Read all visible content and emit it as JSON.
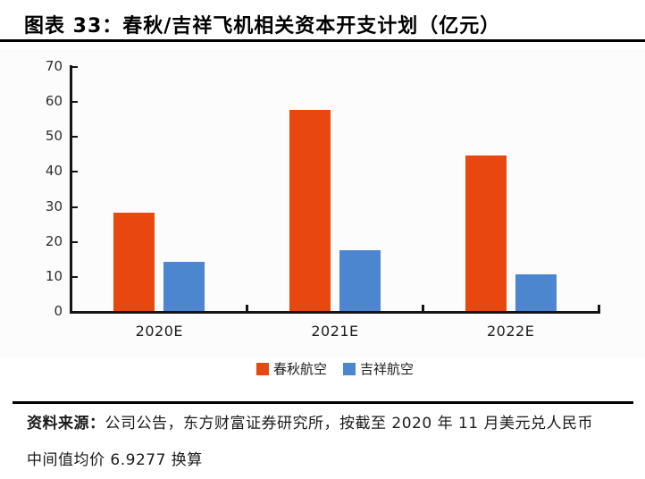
{
  "header": {
    "title": "图表 33：春秋/吉祥飞机相关资本开支计划（亿元）"
  },
  "chart_data": {
    "type": "bar",
    "title": "春秋/吉祥飞机相关资本开支计划（亿元）",
    "categories": [
      "2020E",
      "2021E",
      "2022E"
    ],
    "series": [
      {
        "name": "春秋航空",
        "color": "#e8480f",
        "values": [
          28,
          57.5,
          44.5
        ]
      },
      {
        "name": "吉祥航空",
        "color": "#4c86ce",
        "values": [
          14,
          17.5,
          10.5
        ]
      }
    ],
    "xlabel": "",
    "ylabel": "",
    "ylim": [
      0,
      70
    ],
    "yticks": [
      0,
      10,
      20,
      30,
      40,
      50,
      60,
      70
    ],
    "grid": false,
    "legend_position": "bottom"
  },
  "footer": {
    "source_label": "资料来源：",
    "source_line1_rest": "公司公告，东方财富证券研究所，按截至 2020 年 11 月美元兑人民币",
    "source_line2": "中间值均价 6.9277 换算"
  }
}
